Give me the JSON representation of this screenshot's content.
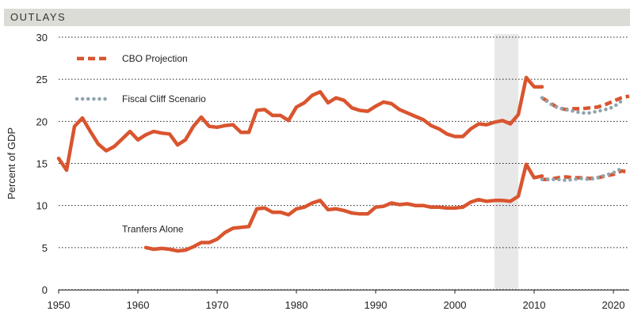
{
  "header": {
    "title": "OUTLAYS"
  },
  "chart_data": {
    "type": "line",
    "title": "OUTLAYS",
    "ylabel": "Percent of GDP",
    "xlabel": "",
    "xlim": [
      1950,
      2022
    ],
    "ylim": [
      0,
      30
    ],
    "x_ticks": [
      1950,
      1960,
      1970,
      1980,
      1990,
      2000,
      2010,
      2020
    ],
    "y_ticks": [
      0,
      5,
      10,
      15,
      20,
      25,
      30
    ],
    "shaded_region": [
      2005,
      2008
    ],
    "legend_position": "top-left",
    "colors": {
      "cbo": "#d9552f",
      "fiscal_cliff": "#8fa5ae",
      "shade": "#e8e8e8",
      "header": "#dcdcd6"
    },
    "legend": [
      {
        "label": "CBO Projection",
        "series": "cbo",
        "style": "dashed"
      },
      {
        "label": "Fiscal Cliff Scenario",
        "series": "fiscal_cliff",
        "style": "dotted"
      }
    ],
    "annotations": [
      {
        "text": "Tranfers Alone",
        "x": 1958,
        "y": 7.2
      }
    ],
    "series": [
      {
        "group": "outlays",
        "style": "solid",
        "color": "#d9552f",
        "x": [
          1950,
          1951,
          1952,
          1953,
          1954,
          1955,
          1956,
          1957,
          1958,
          1959,
          1960,
          1961,
          1962,
          1963,
          1964,
          1965,
          1966,
          1967,
          1968,
          1969,
          1970,
          1971,
          1972,
          1973,
          1974,
          1975,
          1976,
          1977,
          1978,
          1979,
          1980,
          1981,
          1982,
          1983,
          1984,
          1985,
          1986,
          1987,
          1988,
          1989,
          1990,
          1991,
          1992,
          1993,
          1994,
          1995,
          1996,
          1997,
          1998,
          1999,
          2000,
          2001,
          2002,
          2003,
          2004,
          2005,
          2006,
          2007,
          2008,
          2009,
          2010,
          2011
        ],
        "y": [
          15.6,
          14.2,
          19.4,
          20.4,
          18.8,
          17.3,
          16.5,
          17.0,
          17.9,
          18.8,
          17.8,
          18.4,
          18.8,
          18.6,
          18.5,
          17.2,
          17.8,
          19.4,
          20.5,
          19.4,
          19.3,
          19.5,
          19.6,
          18.7,
          18.7,
          21.3,
          21.4,
          20.7,
          20.7,
          20.1,
          21.7,
          22.2,
          23.1,
          23.5,
          22.2,
          22.8,
          22.5,
          21.6,
          21.3,
          21.2,
          21.8,
          22.3,
          22.1,
          21.4,
          21.0,
          20.6,
          20.2,
          19.5,
          19.1,
          18.5,
          18.2,
          18.2,
          19.1,
          19.7,
          19.6,
          19.9,
          20.1,
          19.7,
          20.8,
          25.2,
          24.1,
          24.1
        ]
      },
      {
        "group": "outlays",
        "style": "dashed",
        "color": "#d9552f",
        "name": "CBO Projection",
        "x": [
          2011,
          2012,
          2013,
          2014,
          2015,
          2016,
          2017,
          2018,
          2019,
          2020,
          2021,
          2022
        ],
        "y": [
          22.8,
          22.2,
          21.6,
          21.4,
          21.5,
          21.5,
          21.6,
          21.7,
          22.0,
          22.4,
          22.8,
          23.0
        ]
      },
      {
        "group": "outlays",
        "style": "dotted",
        "color": "#8fa5ae",
        "name": "Fiscal Cliff Scenario",
        "x": [
          2011,
          2012,
          2013,
          2014,
          2015,
          2016,
          2017,
          2018,
          2019,
          2020,
          2021
        ],
        "y": [
          22.8,
          22.1,
          21.6,
          21.4,
          21.2,
          21.0,
          21.0,
          21.2,
          21.4,
          21.7,
          22.4
        ]
      },
      {
        "group": "transfers",
        "style": "solid",
        "color": "#d9552f",
        "x": [
          1961,
          1962,
          1963,
          1964,
          1965,
          1966,
          1967,
          1968,
          1969,
          1970,
          1971,
          1972,
          1973,
          1974,
          1975,
          1976,
          1977,
          1978,
          1979,
          1980,
          1981,
          1982,
          1983,
          1984,
          1985,
          1986,
          1987,
          1988,
          1989,
          1990,
          1991,
          1992,
          1993,
          1994,
          1995,
          1996,
          1997,
          1998,
          1999,
          2000,
          2001,
          2002,
          2003,
          2004,
          2005,
          2006,
          2007,
          2008,
          2009,
          2010,
          2011
        ],
        "y": [
          5.0,
          4.8,
          4.9,
          4.8,
          4.6,
          4.7,
          5.1,
          5.6,
          5.6,
          6.0,
          6.8,
          7.3,
          7.4,
          7.5,
          9.6,
          9.7,
          9.2,
          9.2,
          8.9,
          9.6,
          9.8,
          10.3,
          10.6,
          9.5,
          9.6,
          9.4,
          9.1,
          9.0,
          9.0,
          9.8,
          9.9,
          10.3,
          10.1,
          10.2,
          10.0,
          10.0,
          9.8,
          9.8,
          9.7,
          9.7,
          9.8,
          10.4,
          10.7,
          10.5,
          10.6,
          10.6,
          10.5,
          11.1,
          14.9,
          13.3,
          13.5
        ]
      },
      {
        "group": "transfers",
        "style": "dashed",
        "color": "#d9552f",
        "name": "CBO Projection",
        "x": [
          2011,
          2012,
          2013,
          2014,
          2015,
          2016,
          2017,
          2018,
          2019,
          2020,
          2021,
          2022
        ],
        "y": [
          13.1,
          13.1,
          13.3,
          13.4,
          13.3,
          13.3,
          13.2,
          13.3,
          13.5,
          13.7,
          14.1,
          14.0
        ]
      },
      {
        "group": "transfers",
        "style": "dotted",
        "color": "#8fa5ae",
        "name": "Fiscal Cliff Scenario",
        "x": [
          2011,
          2012,
          2013,
          2014,
          2015,
          2016,
          2017,
          2018,
          2019,
          2020,
          2021
        ],
        "y": [
          13.1,
          13.1,
          13.1,
          13.0,
          13.1,
          13.2,
          13.1,
          13.3,
          13.6,
          13.9,
          14.4
        ]
      }
    ]
  }
}
